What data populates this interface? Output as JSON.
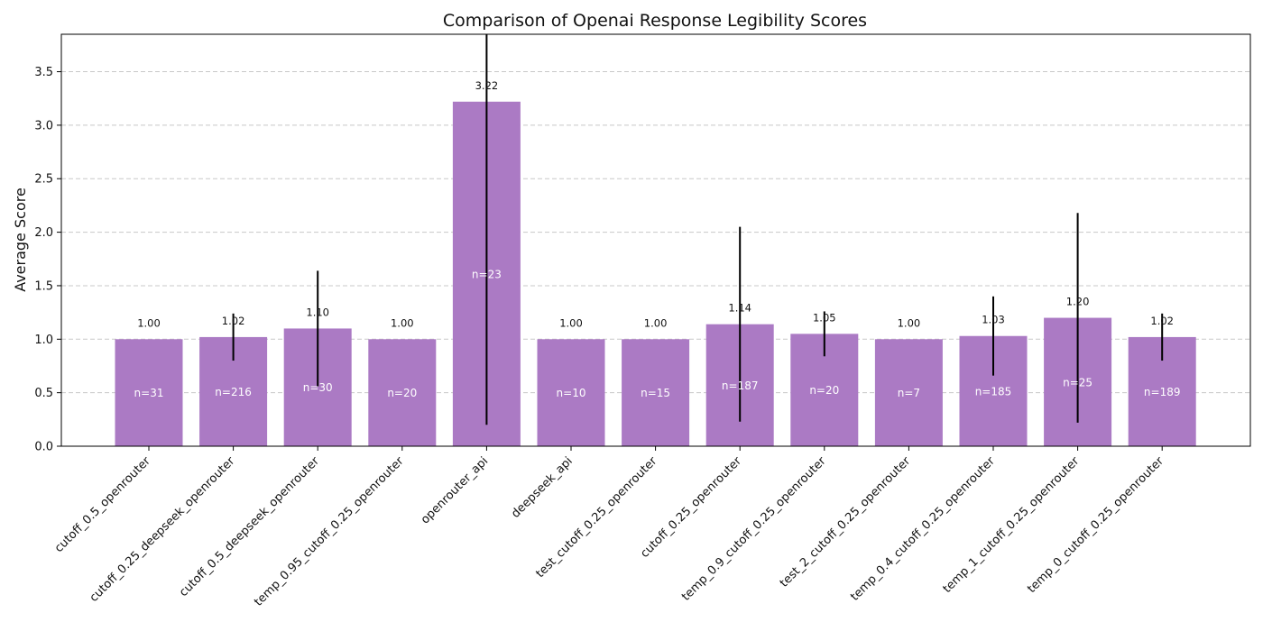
{
  "chart_data": {
    "type": "bar",
    "title": "Comparison of Openai Response Legibility Scores",
    "xlabel": "",
    "ylabel": "Average Score",
    "ylim": [
      0,
      3.85
    ],
    "yticks": [
      "0.0",
      "0.5",
      "1.0",
      "1.5",
      "2.0",
      "2.5",
      "3.0",
      "3.5"
    ],
    "grid": "horizontal dashed",
    "bar_color": "#ab7ac4",
    "categories": [
      "cutoff_0.5_openrouter",
      "cutoff_0.25_deepseek_openrouter",
      "cutoff_0.5_deepseek_openrouter",
      "temp_0.95_cutoff_0.25_openrouter",
      "openrouter_api",
      "deepseek_api",
      "test_cutoff_0.25_openrouter",
      "cutoff_0.25_openrouter",
      "temp_0.9_cutoff_0.25_openrouter",
      "test_2_cutoff_0.25_openrouter",
      "temp_0.4_cutoff_0.25_openrouter",
      "temp_1_cutoff_0.25_openrouter",
      "temp_0_cutoff_0.25_openrouter"
    ],
    "values": [
      1.0,
      1.02,
      1.1,
      1.0,
      3.22,
      1.0,
      1.0,
      1.14,
      1.05,
      1.0,
      1.03,
      1.2,
      1.02
    ],
    "value_labels": [
      "1.00",
      "1.02",
      "1.10",
      "1.00",
      "3.22",
      "1.00",
      "1.00",
      "1.14",
      "1.05",
      "1.00",
      "1.03",
      "1.20",
      "1.02"
    ],
    "errors": [
      0,
      0.22,
      0.54,
      0,
      3.02,
      0,
      0,
      0.91,
      0.21,
      0,
      0.37,
      0.98,
      0.22
    ],
    "n_labels": [
      "n=31",
      "n=216",
      "n=30",
      "n=20",
      "n=23",
      "n=10",
      "n=15",
      "n=187",
      "n=20",
      "n=7",
      "n=185",
      "n=25",
      "n=189"
    ]
  }
}
